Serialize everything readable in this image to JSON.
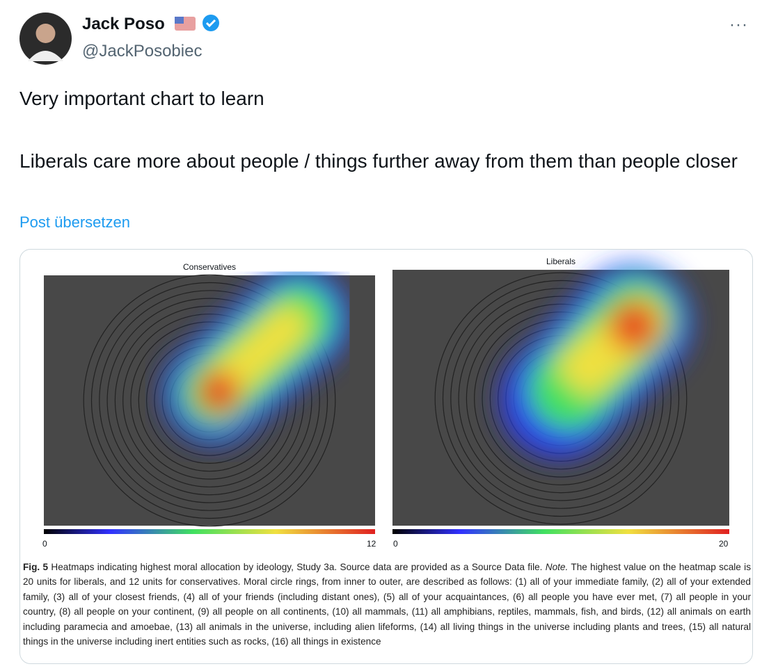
{
  "post": {
    "author": {
      "name": "Jack Poso",
      "handle": "@JackPosobiec"
    },
    "text": [
      "Very important chart to learn",
      "Liberals care more about people / things further away from them than people closer"
    ],
    "translate_link": "Post übersetzen"
  },
  "figure": {
    "panels": [
      {
        "title": "Conservatives",
        "scale_min": "0",
        "scale_max": "12"
      },
      {
        "title": "Liberals",
        "scale_min": "0",
        "scale_max": "20"
      }
    ],
    "caption": {
      "label": "Fig. 5",
      "text": "Heatmaps indicating highest moral allocation by ideology, Study 3a. Source data are provided as a Source Data file.",
      "note_label": "Note.",
      "note": "The highest value on the heatmap scale is 20 units for liberals, and 12 units for conservatives. Moral circle rings, from inner to outer, are described as follows: (1) all of your immediate family, (2) all of your extended family, (3) all of your closest friends, (4) all of your friends (including distant ones), (5) all of your acquaintances, (6) all people you have ever met, (7) all people in your country, (8) all people on your continent, (9) all people on all continents, (10) all mammals, (11) all amphibians, reptiles, mammals, fish, and birds, (12) all animals on earth including paramecia and amoebae, (13) all animals in the universe, including alien lifeforms, (14) all living things in the universe including plants and trees, (15) all natural things in the universe including inert entities such as rocks, (16) all things in existence"
    }
  }
}
